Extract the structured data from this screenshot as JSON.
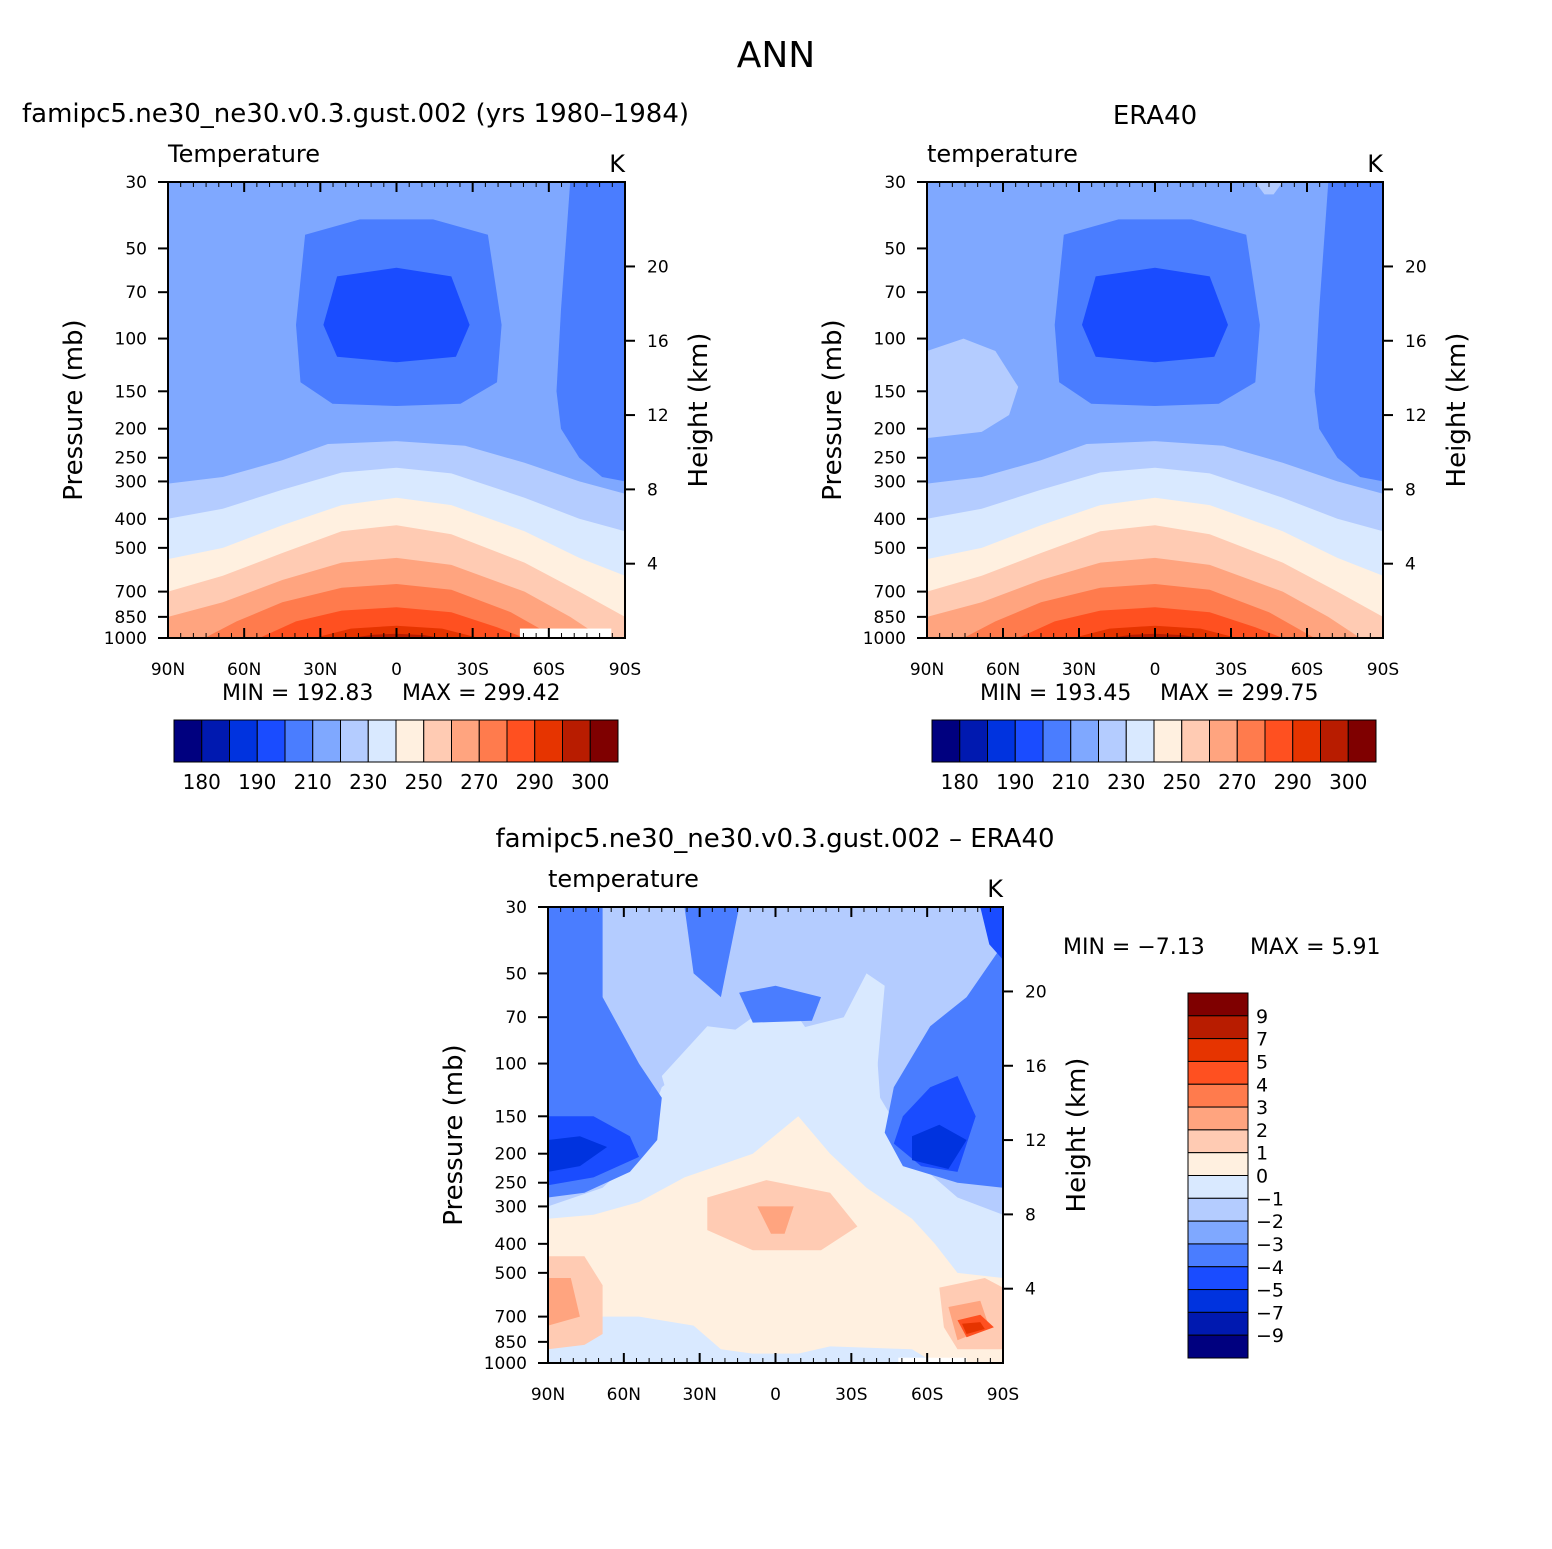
{
  "figure": {
    "title": "ANN",
    "left_title": "famipc5.ne30_ne30.v0.3.gust.002 (yrs 1980–1984)",
    "right_title": "ERA40",
    "diff_title": "famipc5.ne30_ne30.v0.3.gust.002 – ERA40"
  },
  "chart_data": [
    {
      "type": "heatmap",
      "name": "model",
      "label": "Temperature",
      "units": "K",
      "min_text": "MIN = 192.83",
      "max_text": "MAX = 299.42",
      "ylabel": "Pressure (mb)",
      "ylabel2": "Height (km)",
      "x_ticks": [
        "90N",
        "60N",
        "30N",
        "0",
        "30S",
        "60S",
        "90S"
      ],
      "y_ticks": [
        30,
        50,
        70,
        100,
        150,
        200,
        250,
        300,
        400,
        500,
        700,
        850,
        1000
      ],
      "y2_ticks": [
        20,
        16,
        12,
        8,
        4
      ],
      "colorbar_levels": [
        180,
        190,
        210,
        230,
        250,
        270,
        290,
        300
      ],
      "colorbar_colors": [
        "#00007f",
        "#0019b0",
        "#0033df",
        "#1a4cff",
        "#4a7dff",
        "#7fa8ff",
        "#b4ccff",
        "#d9e9ff",
        "#fff0e0",
        "#ffcbb3",
        "#ffa47f",
        "#ff7b4d",
        "#ff5020",
        "#e63400",
        "#b81c00",
        "#7f0000"
      ]
    },
    {
      "type": "heatmap",
      "name": "obs",
      "label": "temperature",
      "units": "K",
      "min_text": "MIN = 193.45",
      "max_text": "MAX = 299.75",
      "ylabel": "Pressure (mb)",
      "ylabel2": "Height (km)",
      "x_ticks": [
        "90N",
        "60N",
        "30N",
        "0",
        "30S",
        "60S",
        "90S"
      ],
      "y_ticks": [
        30,
        50,
        70,
        100,
        150,
        200,
        250,
        300,
        400,
        500,
        700,
        850,
        1000
      ],
      "y2_ticks": [
        20,
        16,
        12,
        8,
        4
      ],
      "colorbar_levels": [
        180,
        190,
        210,
        230,
        250,
        270,
        290,
        300
      ],
      "colorbar_colors": [
        "#00007f",
        "#0019b0",
        "#0033df",
        "#1a4cff",
        "#4a7dff",
        "#7fa8ff",
        "#b4ccff",
        "#d9e9ff",
        "#fff0e0",
        "#ffcbb3",
        "#ffa47f",
        "#ff7b4d",
        "#ff5020",
        "#e63400",
        "#b81c00",
        "#7f0000"
      ]
    },
    {
      "type": "heatmap",
      "name": "diff",
      "label": "temperature",
      "units": "K",
      "min_text": "MIN = −7.13",
      "max_text": "MAX = 5.91",
      "ylabel": "Pressure (mb)",
      "ylabel2": "Height (km)",
      "x_ticks": [
        "90N",
        "60N",
        "30N",
        "0",
        "30S",
        "60S",
        "90S"
      ],
      "y_ticks": [
        30,
        50,
        70,
        100,
        150,
        200,
        250,
        300,
        400,
        500,
        700,
        850,
        1000
      ],
      "y2_ticks": [
        20,
        16,
        12,
        8,
        4
      ],
      "colorbar_levels": [
        "9",
        "7",
        "5",
        "4",
        "3",
        "2",
        "1",
        "0",
        "−1",
        "−2",
        "−3",
        "−4",
        "−5",
        "−7",
        "−9"
      ],
      "colorbar_colors": [
        "#7f0000",
        "#b81c00",
        "#e63400",
        "#ff5020",
        "#ff7b4d",
        "#ffa47f",
        "#ffcbb3",
        "#fff0e0",
        "#d9e9ff",
        "#b4ccff",
        "#7fa8ff",
        "#4a7dff",
        "#1a4cff",
        "#0033df",
        "#0019b0",
        "#00007f"
      ]
    }
  ]
}
